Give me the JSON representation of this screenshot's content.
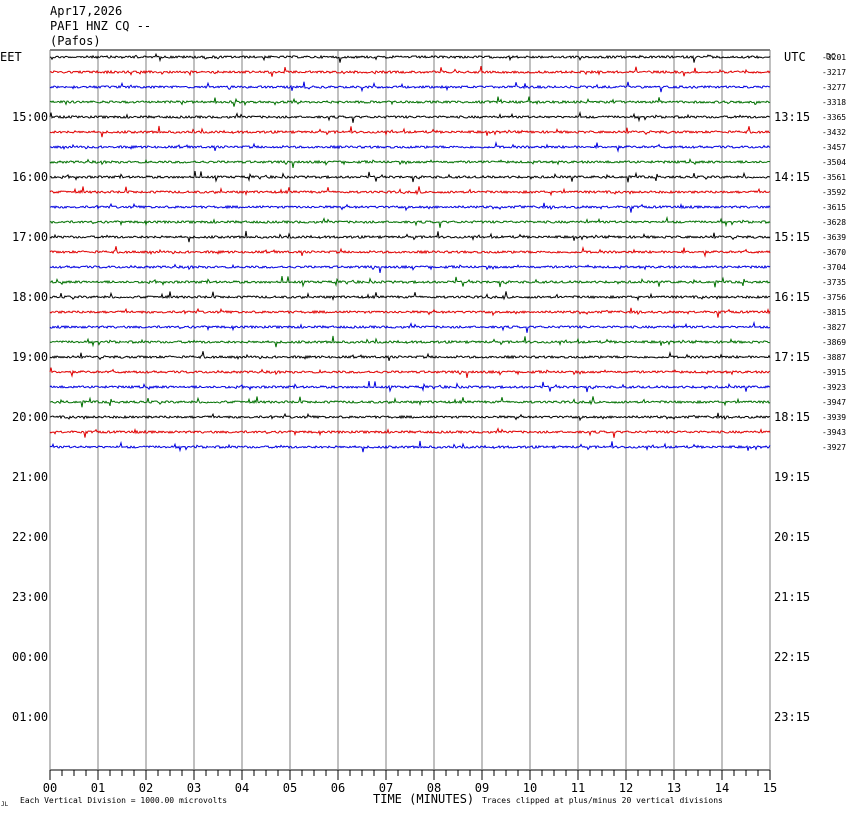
{
  "header": {
    "date": "Apr17,2026",
    "station": "PAF1 HNZ CQ --",
    "place": "(Pafos)"
  },
  "labels": {
    "left_zone": "EET",
    "right_zone": "UTC",
    "dc_label": "DC",
    "xlabel": "TIME (MINUTES)",
    "scale_note": "Each Vertical Division = 1000.00 microvolts",
    "clip_note": "Traces clipped at plus/minus 20 vertical divisions",
    "corner_mark": "JL"
  },
  "chart_data": {
    "type": "line",
    "title": "PAF1 HNZ CQ --",
    "xlabel": "TIME (MINUTES)",
    "x_ticks": [
      "00",
      "01",
      "02",
      "03",
      "04",
      "05",
      "06",
      "07",
      "08",
      "09",
      "10",
      "11",
      "12",
      "13",
      "14",
      "15"
    ],
    "xlim": [
      0,
      15
    ],
    "left_time_labels": [
      "15:00",
      "16:00",
      "17:00",
      "18:00",
      "19:00",
      "20:00",
      "21:00",
      "22:00",
      "23:00",
      "00:00",
      "01:00"
    ],
    "right_time_labels": [
      "13:15",
      "14:15",
      "15:15",
      "16:15",
      "17:15",
      "18:15",
      "19:15",
      "20:15",
      "21:15",
      "22:15",
      "23:15"
    ],
    "trace_colors": [
      "#000000",
      "#e00000",
      "#0000e0",
      "#007000"
    ],
    "dc_offsets": [
      -3201,
      -3217,
      -3277,
      -3318,
      -3365,
      -3432,
      -3457,
      -3504,
      -3561,
      -3592,
      -3615,
      -3628,
      -3639,
      -3670,
      -3704,
      -3735,
      -3756,
      -3815,
      -3827,
      -3869,
      -3887,
      -3915,
      -3923,
      -3947,
      -3939,
      -3943,
      -3927
    ],
    "trace_count": 27,
    "trace_interval_minutes": 15
  }
}
